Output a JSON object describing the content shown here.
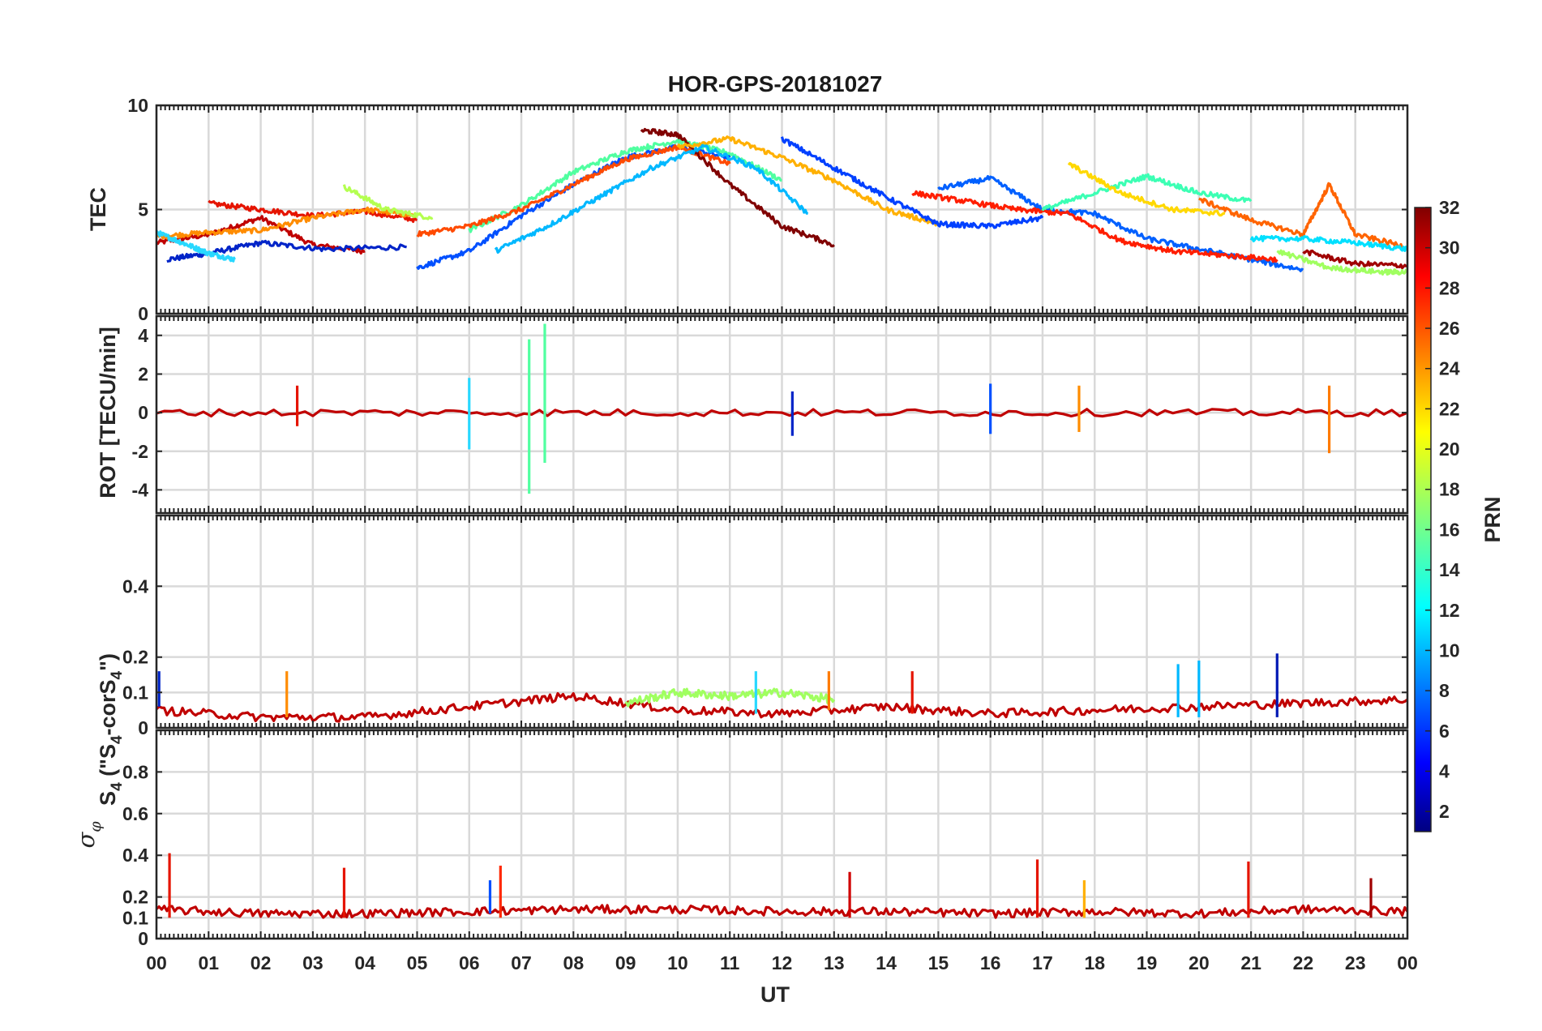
{
  "chart_data": {
    "type": "line",
    "title": "HOR-GPS-20181027",
    "xlabel": "UT",
    "x_ticks": [
      "00",
      "01",
      "02",
      "03",
      "04",
      "05",
      "06",
      "07",
      "08",
      "09",
      "10",
      "11",
      "12",
      "13",
      "14",
      "15",
      "16",
      "17",
      "18",
      "19",
      "20",
      "21",
      "22",
      "23",
      "00"
    ],
    "x_range_hours": [
      0,
      24
    ],
    "grid": true,
    "colorbar": {
      "label": "PRN",
      "range": [
        1,
        32
      ],
      "ticks": [
        "2",
        "4",
        "6",
        "8",
        "10",
        "12",
        "14",
        "16",
        "18",
        "20",
        "22",
        "24",
        "26",
        "28",
        "30",
        "32"
      ],
      "colormap": "jet",
      "placement": "right"
    },
    "panels": [
      {
        "id": "tec",
        "ylabel": "TEC",
        "ylim": [
          0,
          10
        ],
        "y_ticks": [
          "0",
          "5",
          "10"
        ],
        "series": [
          {
            "prn": 30,
            "color": "#c00000",
            "x": [
              0,
              1,
              2,
              3,
              4
            ],
            "y": [
              3.4,
              3.8,
              4.6,
              3.3,
              3.0
            ]
          },
          {
            "prn": 3,
            "color": "#0024c8",
            "x": [
              0.2,
              1,
              2,
              3.2,
              4.8
            ],
            "y": [
              2.6,
              2.9,
              3.4,
              3.1,
              3.2
            ]
          },
          {
            "prn": 27,
            "color": "#e51400",
            "x": [
              1,
              2,
              3,
              4,
              5
            ],
            "y": [
              5.3,
              5.0,
              4.7,
              4.9,
              4.5
            ]
          },
          {
            "prn": 23,
            "color": "#ff8c00",
            "x": [
              0,
              1,
              2,
              3,
              4,
              5
            ],
            "y": [
              3.7,
              3.9,
              4.0,
              4.6,
              5.0,
              4.7
            ]
          },
          {
            "prn": 13,
            "color": "#28d8ff",
            "x": [
              0,
              0.5,
              1,
              1.5
            ],
            "y": [
              3.9,
              3.4,
              2.9,
              2.6
            ]
          },
          {
            "prn": 19,
            "color": "#b4ff50",
            "x": [
              3.6,
              4.4,
              5.3
            ],
            "y": [
              6.1,
              5.0,
              4.6
            ]
          },
          {
            "prn": 7,
            "color": "#0050ff",
            "x": [
              5,
              6,
              7,
              8,
              9,
              10,
              11
            ],
            "y": [
              2.2,
              3.0,
              4.7,
              6.2,
              7.5,
              8.0,
              7.5
            ]
          },
          {
            "prn": 16,
            "color": "#50ffa0",
            "x": [
              6,
              7,
              8,
              9,
              10,
              11,
              12
            ],
            "y": [
              4.0,
              5.2,
              6.8,
              7.8,
              8.3,
              7.7,
              6.4
            ]
          },
          {
            "prn": 26,
            "color": "#ff4a00",
            "x": [
              5,
              6,
              7,
              8,
              9,
              10,
              11
            ],
            "y": [
              3.8,
              4.2,
              5.0,
              6.2,
              7.4,
              8.0,
              7.2
            ]
          },
          {
            "prn": 32,
            "color": "#800000",
            "x": [
              9.3,
              10,
              11,
              12,
              13
            ],
            "y": [
              8.8,
              8.6,
              6.2,
              4.2,
              3.3
            ]
          },
          {
            "prn": 22,
            "color": "#ffb000",
            "x": [
              10,
              11,
              12,
              13,
              14,
              15
            ],
            "y": [
              8.0,
              8.4,
              7.5,
              6.4,
              5.0,
              4.3
            ]
          },
          {
            "prn": 12,
            "color": "#00b8ff",
            "x": [
              6.5,
              7.5,
              8.5,
              9.5,
              10.5,
              11.5,
              12.5
            ],
            "y": [
              3.0,
              4.2,
              5.6,
              7.0,
              8.0,
              7.0,
              4.8
            ]
          },
          {
            "prn": 6,
            "color": "#0040ff",
            "x": [
              12,
              13,
              14,
              15,
              16,
              17
            ],
            "y": [
              8.4,
              7.0,
              5.6,
              4.3,
              4.2,
              4.6
            ]
          },
          {
            "prn": 9,
            "color": "#0060ff",
            "x": [
              15,
              16,
              17,
              18,
              19,
              20,
              21,
              22
            ],
            "y": [
              6.0,
              6.5,
              5.0,
              4.8,
              3.6,
              3.1,
              2.6,
              2.1
            ]
          },
          {
            "prn": 28,
            "color": "#ff1e00",
            "x": [
              14.5,
              15.5,
              16.5,
              17.5,
              18.5,
              19.5,
              20.5,
              21.5
            ],
            "y": [
              5.8,
              5.4,
              5.0,
              4.8,
              3.5,
              3.0,
              2.8,
              2.6
            ]
          },
          {
            "prn": 15,
            "color": "#3cffb4",
            "x": [
              17,
              18,
              19,
              20,
              21
            ],
            "y": [
              5.0,
              5.8,
              6.6,
              5.8,
              5.4
            ]
          },
          {
            "prn": 21,
            "color": "#ffd800",
            "x": [
              17.5,
              18.5,
              19.5,
              20.5
            ],
            "y": [
              7.2,
              5.8,
              5.0,
              4.8
            ]
          },
          {
            "prn": 25,
            "color": "#ff6400",
            "x": [
              20,
              21,
              22,
              22.5,
              23,
              24
            ],
            "y": [
              5.5,
              4.5,
              3.8,
              6.2,
              3.8,
              3.2
            ]
          },
          {
            "prn": 11,
            "color": "#00e0ff",
            "x": [
              21,
              22,
              23,
              24
            ],
            "y": [
              3.6,
              3.6,
              3.4,
              3.1
            ]
          },
          {
            "prn": 31,
            "color": "#a00000",
            "x": [
              22,
              23,
              24
            ],
            "y": [
              3.0,
              2.4,
              2.3
            ]
          },
          {
            "prn": 18,
            "color": "#a0ff60",
            "x": [
              21.5,
              22.5,
              23.5,
              24
            ],
            "y": [
              3.0,
              2.2,
              2.0,
              2.0
            ]
          }
        ]
      },
      {
        "id": "rot",
        "ylabel": "ROT [TECU/min]",
        "ylim": [
          -5.2,
          5.0
        ],
        "y_ticks": [
          "-4",
          "-2",
          "0",
          "2",
          "4"
        ],
        "series": [
          {
            "prn": 30,
            "color": "#c00000",
            "x": [
              0,
              6,
              12,
              18,
              24
            ],
            "y": [
              0,
              0,
              0,
              0,
              0
            ]
          }
        ],
        "spikes": [
          {
            "prn": 15,
            "color": "#50ffa0",
            "x": 7.15,
            "min": -4.2,
            "max": 3.8
          },
          {
            "prn": 15,
            "color": "#50ffa0",
            "x": 7.45,
            "min": -2.6,
            "max": 4.6
          },
          {
            "prn": 13,
            "color": "#28d8ff",
            "x": 6.0,
            "min": -1.9,
            "max": 1.8
          },
          {
            "prn": 25,
            "color": "#ff7a00",
            "x": 22.5,
            "min": -2.1,
            "max": 1.4
          },
          {
            "prn": 3,
            "color": "#0024c8",
            "x": 12.2,
            "min": -1.2,
            "max": 1.1
          },
          {
            "prn": 5,
            "color": "#0050ff",
            "x": 16.0,
            "min": -1.1,
            "max": 1.5
          },
          {
            "prn": 23,
            "color": "#ff8c00",
            "x": 17.7,
            "min": -1.0,
            "max": 1.4
          },
          {
            "prn": 28,
            "color": "#e51400",
            "x": 2.7,
            "min": -0.7,
            "max": 1.4
          }
        ]
      },
      {
        "id": "s4",
        "ylabel": "S4 (\"S4-corS4\")",
        "ylim": [
          0,
          0.6
        ],
        "y_ticks": [
          "0",
          "0.1",
          "0.2",
          "0.4"
        ],
        "series": [
          {
            "prn": 30,
            "color": "#c00000",
            "x": [
              0,
              2,
              4,
              6,
              8,
              10,
              12,
              14,
              16,
              18,
              20,
              22,
              24
            ],
            "y": [
              0.05,
              0.03,
              0.03,
              0.06,
              0.09,
              0.05,
              0.04,
              0.06,
              0.04,
              0.05,
              0.06,
              0.07,
              0.08
            ]
          },
          {
            "prn": 18,
            "color": "#a0ff60",
            "x": [
              9,
              10,
              11,
              12,
              13
            ],
            "y": [
              0.07,
              0.1,
              0.09,
              0.1,
              0.08
            ]
          }
        ],
        "spikes": [
          {
            "prn": 2,
            "color": "#0018b4",
            "x": 21.5,
            "min": 0.03,
            "max": 0.21
          },
          {
            "prn": 13,
            "color": "#28d8ff",
            "x": 11.5,
            "min": 0.04,
            "max": 0.16
          },
          {
            "prn": 24,
            "color": "#ff7a00",
            "x": 12.9,
            "min": 0.05,
            "max": 0.16
          },
          {
            "prn": 23,
            "color": "#ff8c00",
            "x": 2.5,
            "min": 0.03,
            "max": 0.16
          },
          {
            "prn": 27,
            "color": "#e51400",
            "x": 14.5,
            "min": 0.04,
            "max": 0.16
          },
          {
            "prn": 12,
            "color": "#00b8ff",
            "x": 19.6,
            "min": 0.03,
            "max": 0.18
          },
          {
            "prn": 12,
            "color": "#00b8ff",
            "x": 20.0,
            "min": 0.03,
            "max": 0.19
          },
          {
            "prn": 3,
            "color": "#0024c8",
            "x": 0.05,
            "min": 0.06,
            "max": 0.16
          }
        ]
      },
      {
        "id": "sigma",
        "ylabel": "σφ",
        "ylim": [
          0,
          1.0
        ],
        "y_ticks": [
          "0",
          "0.1",
          "0.2",
          "0.4",
          "0.6",
          "0.8"
        ],
        "series": [
          {
            "prn": 30,
            "color": "#c00000",
            "x": [
              0,
              2,
              4,
              6,
              8,
              10,
              12,
              14,
              16,
              18,
              20,
              22,
              24
            ],
            "y": [
              0.14,
              0.12,
              0.12,
              0.13,
              0.14,
              0.14,
              0.13,
              0.13,
              0.12,
              0.13,
              0.12,
              0.14,
              0.13
            ]
          }
        ],
        "spikes": [
          {
            "prn": 28,
            "color": "#e51400",
            "x": 0.25,
            "min": 0.1,
            "max": 0.41
          },
          {
            "prn": 27,
            "color": "#e51400",
            "x": 3.6,
            "min": 0.1,
            "max": 0.34
          },
          {
            "prn": 26,
            "color": "#ff2800",
            "x": 6.6,
            "min": 0.1,
            "max": 0.35
          },
          {
            "prn": 8,
            "color": "#0050ff",
            "x": 6.4,
            "min": 0.12,
            "max": 0.28
          },
          {
            "prn": 29,
            "color": "#d00000",
            "x": 13.3,
            "min": 0.1,
            "max": 0.32
          },
          {
            "prn": 28,
            "color": "#e51400",
            "x": 16.9,
            "min": 0.1,
            "max": 0.38
          },
          {
            "prn": 22,
            "color": "#ffb000",
            "x": 17.8,
            "min": 0.1,
            "max": 0.28
          },
          {
            "prn": 28,
            "color": "#e51400",
            "x": 20.95,
            "min": 0.1,
            "max": 0.37
          },
          {
            "prn": 31,
            "color": "#a00000",
            "x": 23.3,
            "min": 0.1,
            "max": 0.29
          }
        ]
      }
    ]
  }
}
